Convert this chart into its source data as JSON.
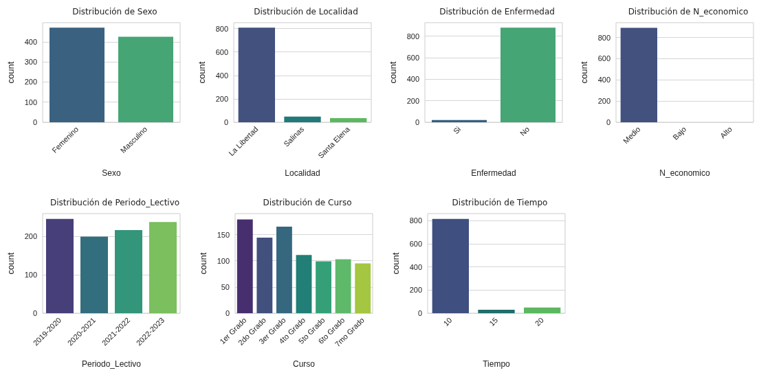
{
  "chart_data": [
    {
      "type": "bar",
      "title": "Distribución de Sexo",
      "xlabel": "Sexo",
      "ylabel": "count",
      "categories": [
        "Femenino",
        "Masculino"
      ],
      "values": [
        470,
        425
      ],
      "colors": [
        "#3a6280",
        "#45a574"
      ],
      "ylim": [
        0,
        495
      ],
      "yticks": [
        0,
        100,
        200,
        300,
        400
      ],
      "grid": "y"
    },
    {
      "type": "bar",
      "title": "Distribución de Localidad",
      "xlabel": "Localidad",
      "ylabel": "count",
      "categories": [
        "La Libertad",
        "Salinas",
        "Santa Elena"
      ],
      "values": [
        808,
        48,
        35
      ],
      "colors": [
        "#42517e",
        "#23787a",
        "#5cb85f"
      ],
      "ylim": [
        0,
        850
      ],
      "yticks": [
        0,
        200,
        400,
        600,
        800
      ],
      "grid": "y"
    },
    {
      "type": "bar",
      "title": "Distribución de Enfermedad",
      "xlabel": "Enfermedad",
      "ylabel": "count",
      "categories": [
        "Si",
        "No"
      ],
      "values": [
        20,
        878
      ],
      "colors": [
        "#35607f",
        "#45a574"
      ],
      "ylim": [
        0,
        925
      ],
      "yticks": [
        0,
        200,
        400,
        600,
        800
      ],
      "grid": "y"
    },
    {
      "type": "bar",
      "title": "Distribución de N_economico",
      "xlabel": "N_economico",
      "ylabel": "count",
      "categories": [
        "Medio",
        "Bajo",
        "Alto"
      ],
      "values": [
        891,
        0,
        0
      ],
      "colors": [
        "#42517e",
        "#26838f",
        "#5cb85f"
      ],
      "ylim": [
        0,
        940
      ],
      "yticks": [
        0,
        200,
        400,
        600,
        800
      ],
      "grid": "y"
    },
    {
      "type": "bar",
      "title": "Distribución de Periodo_Lectivo",
      "xlabel": "Periodo_Lectivo",
      "ylabel": "count",
      "categories": [
        "2019-2020",
        "2020-2021",
        "2021-2022",
        "2022-2023"
      ],
      "values": [
        246,
        200,
        217,
        238
      ],
      "colors": [
        "#463f7a",
        "#336e7e",
        "#33957a",
        "#7bbf5e"
      ],
      "ylim": [
        0,
        260
      ],
      "yticks": [
        0,
        100,
        200
      ],
      "grid": "y"
    },
    {
      "type": "bar",
      "title": "Distribución de Curso",
      "xlabel": "Curso",
      "ylabel": "count",
      "categories": [
        "1er Grado",
        "2do Grado",
        "3er Grado",
        "4to Grado",
        "5to Grado",
        "6to Grado",
        "7mo Grado"
      ],
      "values": [
        179,
        144,
        165,
        111,
        99,
        103,
        95
      ],
      "colors": [
        "#472f6f",
        "#42507e",
        "#35687f",
        "#217f77",
        "#35a078",
        "#5fb96a",
        "#a4c640"
      ],
      "ylim": [
        0,
        190
      ],
      "yticks": [
        0,
        50,
        100,
        150
      ],
      "grid": "y"
    },
    {
      "type": "bar",
      "title": "Distribución de Tiempo",
      "xlabel": "Tiempo",
      "ylabel": "count",
      "categories": [
        "10",
        "15",
        "20"
      ],
      "values": [
        814,
        30,
        49
      ],
      "colors": [
        "#3e4f80",
        "#1f6e6b",
        "#5cb85f"
      ],
      "ylim": [
        0,
        860
      ],
      "yticks": [
        0,
        200,
        400,
        600,
        800
      ],
      "grid": "y"
    }
  ]
}
